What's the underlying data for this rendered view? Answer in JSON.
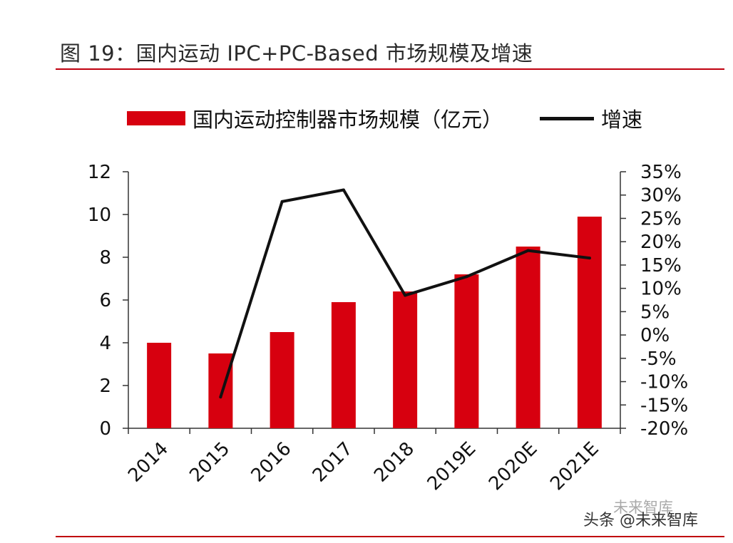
{
  "title": "图 19：国内运动 IPC+PC-Based 市场规模及增速",
  "colors": {
    "bar": "#d7000f",
    "line": "#111111",
    "rule": "#c0000e"
  },
  "legend": {
    "bar_label": "国内运动控制器市场规模（亿元）",
    "line_label": "增速"
  },
  "watermark": {
    "text": "头条 @未来智库",
    "faint_text": "未来智库"
  },
  "chart_data": {
    "type": "bar",
    "categories": [
      "2014",
      "2015",
      "2016",
      "2017",
      "2018",
      "2019E",
      "2020E",
      "2021E"
    ],
    "series": [
      {
        "name": "国内运动控制器市场规模（亿元）",
        "type": "bar",
        "axis": "left",
        "values": [
          4.0,
          3.5,
          4.5,
          5.9,
          6.4,
          7.2,
          8.5,
          9.9
        ]
      },
      {
        "name": "增速",
        "type": "line",
        "axis": "right",
        "values": [
          null,
          -13.3,
          28.6,
          31.1,
          8.5,
          12.5,
          18.1,
          16.5
        ]
      }
    ],
    "y_left": {
      "min": 0,
      "max": 12,
      "ticks": [
        "0",
        "2",
        "4",
        "6",
        "8",
        "10",
        "12"
      ]
    },
    "y_right": {
      "min": -20,
      "max": 35,
      "ticks": [
        "-20%",
        "-15%",
        "-10%",
        "-5%",
        "0%",
        "5%",
        "10%",
        "15%",
        "20%",
        "25%",
        "30%",
        "35%"
      ]
    },
    "legend_position": "top",
    "grid": false
  }
}
